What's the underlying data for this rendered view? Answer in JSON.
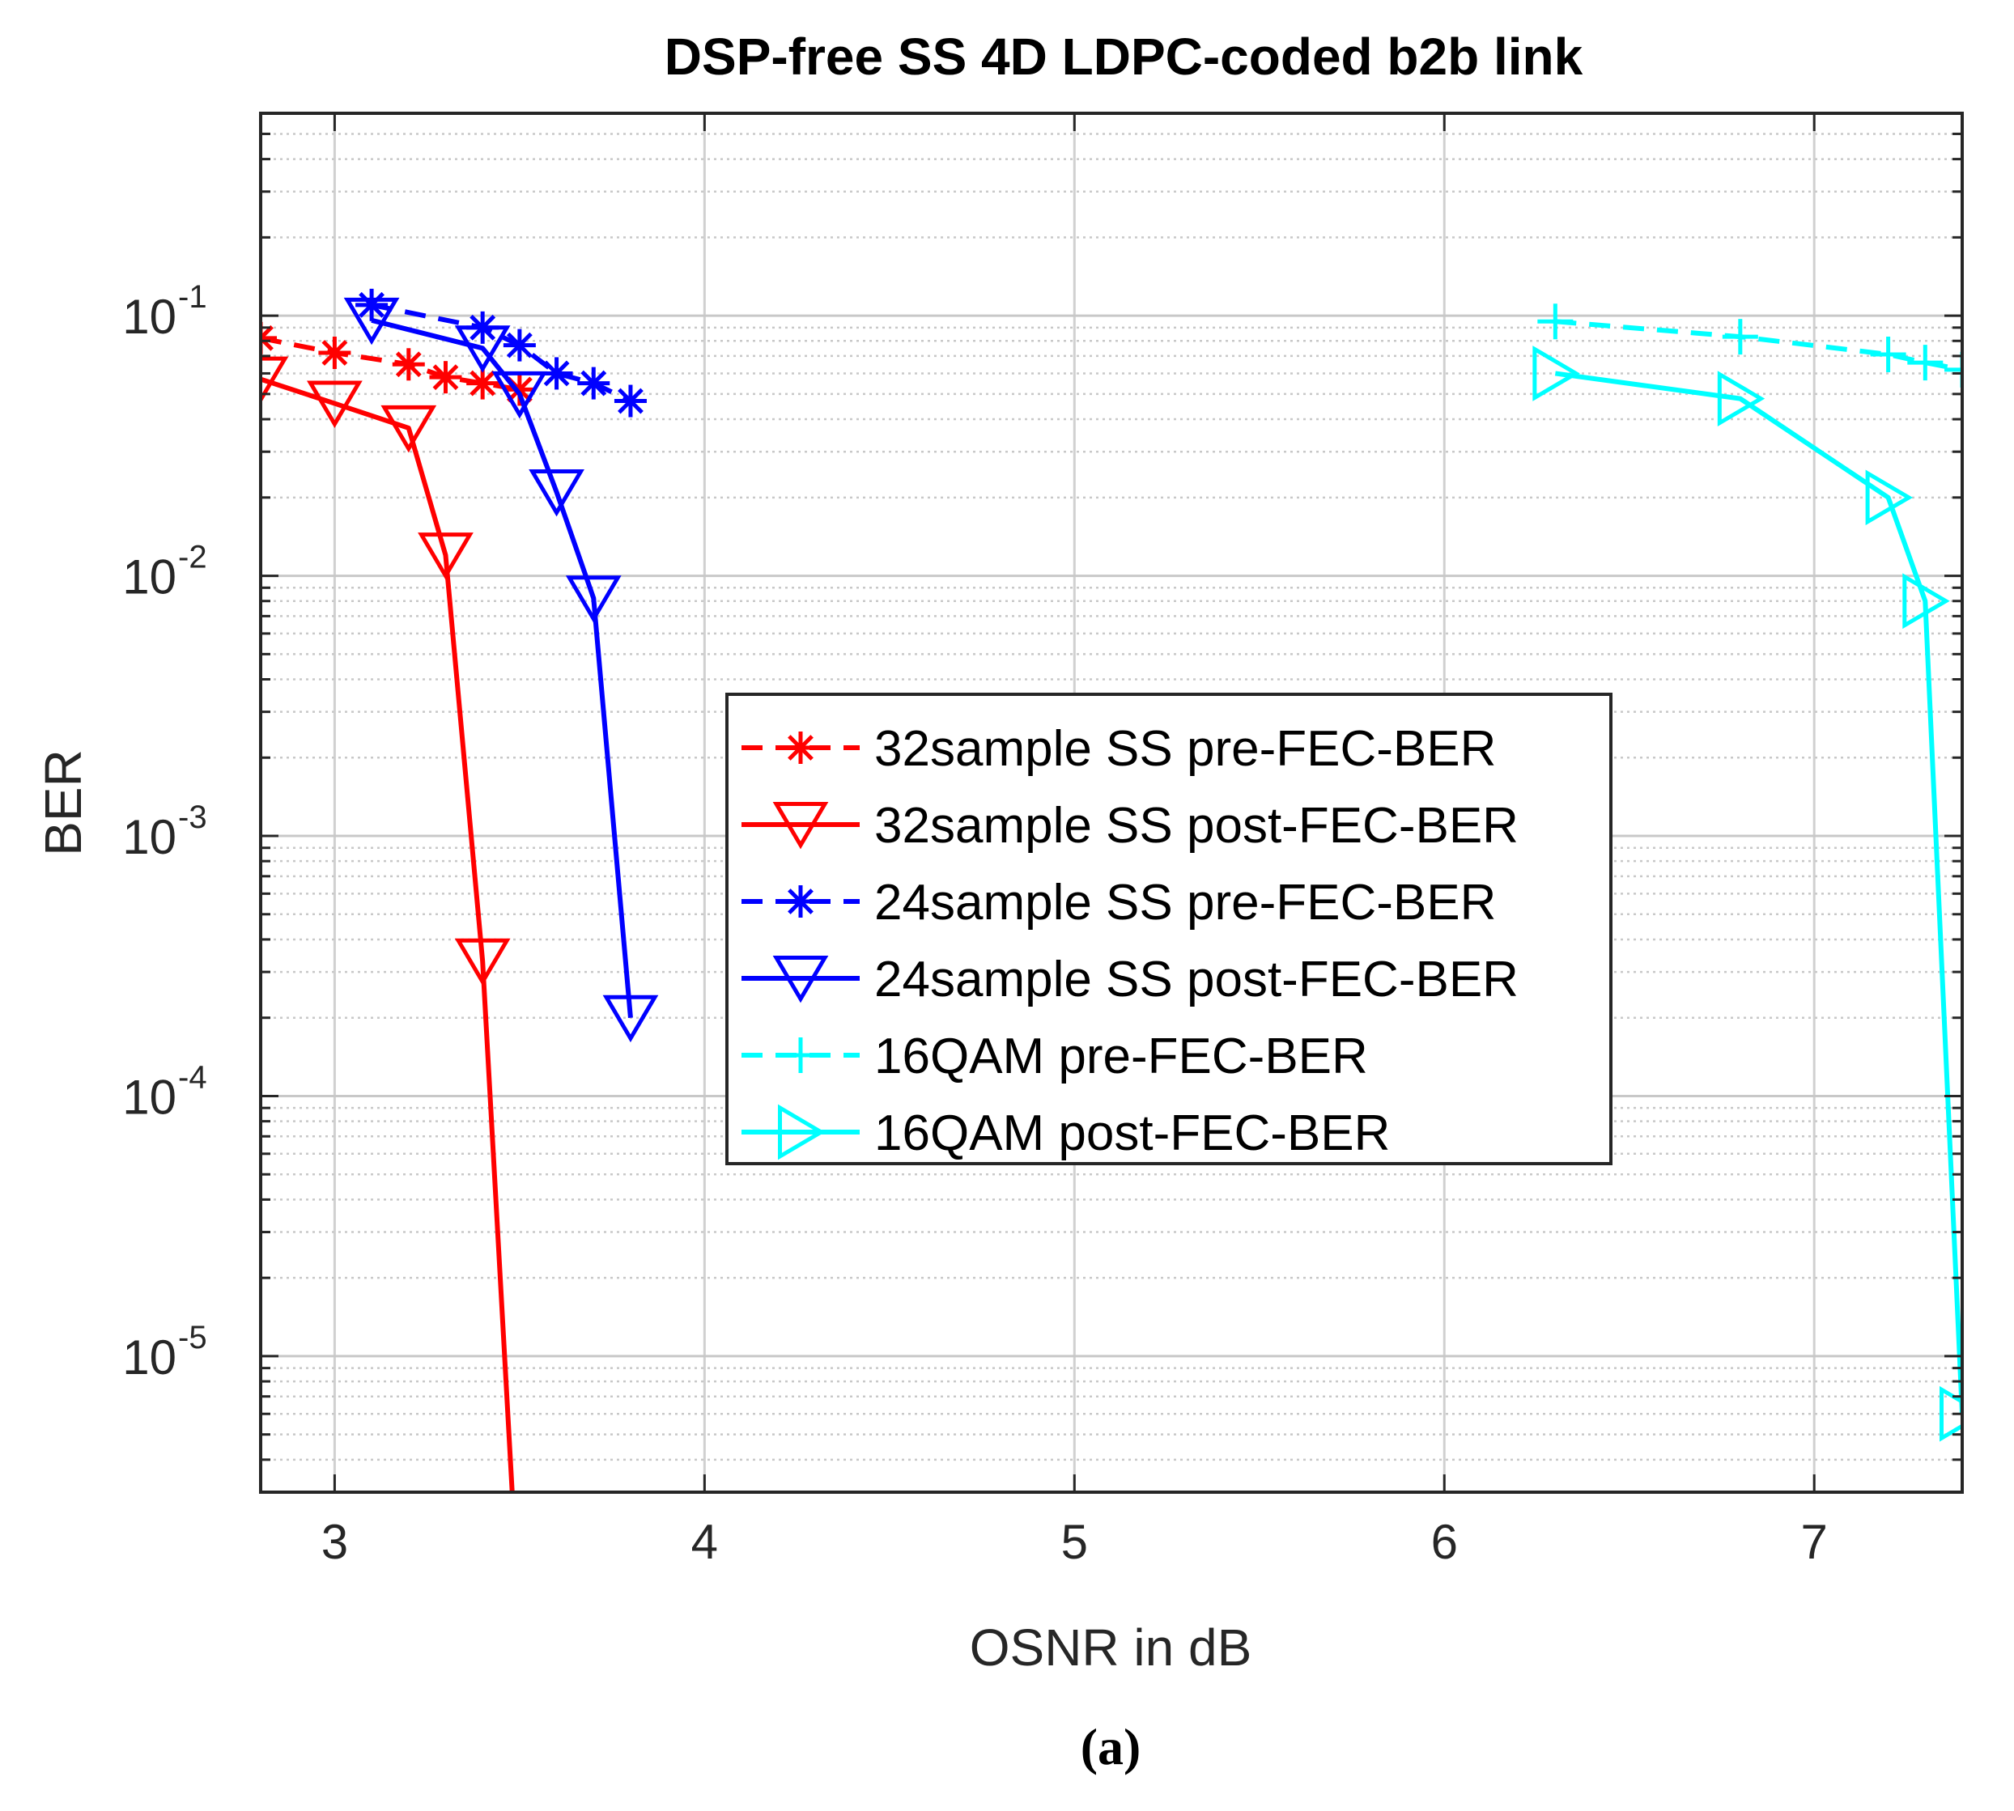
{
  "chart_data": {
    "type": "line",
    "title": "DSP-free SS 4D LDPC-coded b2b link",
    "xlabel": "OSNR in dB",
    "ylabel": "BER",
    "xlim": [
      2.8,
      7.4
    ],
    "ylim": [
      3e-06,
      0.6
    ],
    "yscale": "log",
    "grid": true,
    "xticks": [
      "3",
      "4",
      "5",
      "6",
      "7"
    ],
    "yticks": [
      {
        "base": "10",
        "exp": "-1"
      },
      {
        "base": "10",
        "exp": "-2"
      },
      {
        "base": "10",
        "exp": "-3"
      },
      {
        "base": "10",
        "exp": "-4"
      },
      {
        "base": "10",
        "exp": "-5"
      }
    ],
    "caption": "(a)",
    "legend_position": "center",
    "series": [
      {
        "name": "32sample SS pre-FEC-BER",
        "color": "#ff0000",
        "linestyle": "dashed",
        "marker": "asterisk",
        "x": [
          2.8,
          3.0,
          3.2,
          3.3,
          3.4,
          3.5
        ],
        "y": [
          0.082,
          0.072,
          0.065,
          0.058,
          0.055,
          0.052
        ]
      },
      {
        "name": "32sample SS post-FEC-BER",
        "color": "#ff0000",
        "linestyle": "solid",
        "marker": "triangle-down",
        "x": [
          2.8,
          3.0,
          3.2,
          3.3,
          3.4,
          3.48
        ],
        "y": [
          0.057,
          0.046,
          0.037,
          0.012,
          0.00033,
          3e-06
        ]
      },
      {
        "name": "24sample SS pre-FEC-BER",
        "color": "#0000ff",
        "linestyle": "dashed",
        "marker": "asterisk",
        "x": [
          3.1,
          3.4,
          3.5,
          3.6,
          3.7,
          3.8
        ],
        "y": [
          0.11,
          0.09,
          0.077,
          0.06,
          0.055,
          0.047
        ]
      },
      {
        "name": "24sample SS post-FEC-BER",
        "color": "#0000ff",
        "linestyle": "solid",
        "marker": "triangle-down",
        "x": [
          3.1,
          3.4,
          3.5,
          3.6,
          3.7,
          3.8
        ],
        "y": [
          0.096,
          0.075,
          0.05,
          0.021,
          0.0082,
          0.0002
        ]
      },
      {
        "name": "16QAM pre-FEC-BER",
        "color": "#00ffff",
        "linestyle": "dashed",
        "marker": "plus",
        "x": [
          6.3,
          6.8,
          7.2,
          7.3,
          7.4
        ],
        "y": [
          0.095,
          0.083,
          0.071,
          0.066,
          0.062
        ]
      },
      {
        "name": "16QAM post-FEC-BER",
        "color": "#00ffff",
        "linestyle": "solid",
        "marker": "triangle-right",
        "x": [
          6.3,
          6.8,
          7.2,
          7.3,
          7.4
        ],
        "y": [
          0.06,
          0.048,
          0.02,
          0.008,
          6e-06
        ]
      }
    ]
  }
}
